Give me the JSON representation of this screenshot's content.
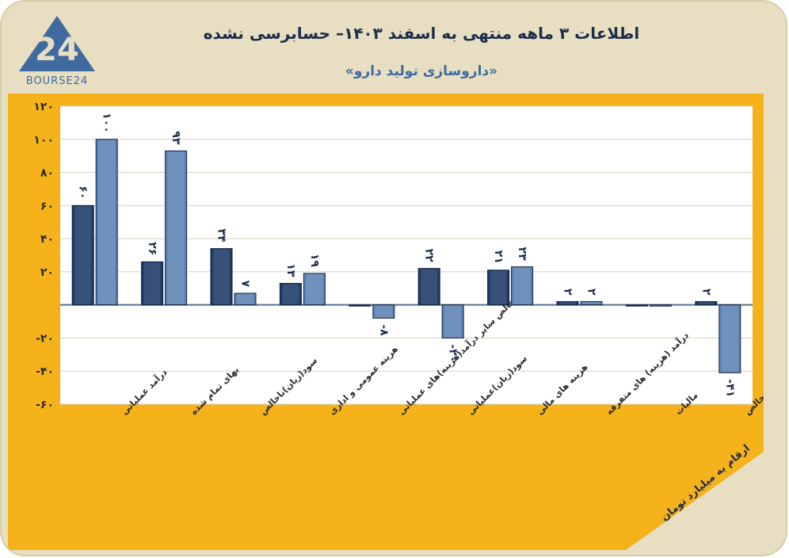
{
  "header": {
    "title": "اطلاعات ۳ ماهه منتهی به اسفند ۱۴۰۳– حسابرسی نشده",
    "subtitle": "«داروسازی تولید دارو»",
    "logo_text": "BOURSE24",
    "logo_mark": "24"
  },
  "unit_note": "ارقام به میلیارد تومان",
  "colors": {
    "background": "#e8dfc3",
    "panel": "#f6b21a",
    "series_dark": "#1d3a66",
    "series_light": "#5e82b4",
    "gridline": "#d7d2c4",
    "axis_text": "#2a2a2a"
  },
  "chart_data": {
    "type": "bar",
    "categories": [
      "درآمد عملیاتی",
      "بهای تمام شده",
      "سود(زیان)ناخالص",
      "هزینه عمومی و اداری",
      "خالص سایر درآمد(هزینه)های عملیاتی",
      "سود(زیان)عملیاتی",
      "هزینه های مالی",
      "درآمد (هزینه) های متفرقه",
      "مالیات",
      "سود(زیان) خالص"
    ],
    "series": [
      {
        "values": [
          60,
          26,
          34,
          13,
          0,
          22,
          21,
          2,
          0,
          2
        ],
        "labels": [
          "۶۰",
          "۲۶",
          "۳۴",
          "۱۳",
          "",
          "۲۲",
          "۲۱",
          "۲",
          "",
          "۲"
        ]
      },
      {
        "values": [
          100,
          93,
          7,
          19,
          -8,
          -20,
          23,
          2,
          0,
          -41
        ],
        "labels": [
          "۱۰۰",
          "۹۳",
          "۷",
          "۱۹",
          "-۸",
          "-۲۰",
          "۲۳",
          "۲",
          "",
          "-۴۱"
        ]
      }
    ],
    "ylim": [
      -60,
      120
    ],
    "yticks": [
      -60,
      -40,
      -20,
      20,
      40,
      60,
      80,
      100,
      120
    ],
    "ytick_labels": [
      "-۶۰",
      "-۴۰",
      "-۲۰",
      "۲۰",
      "۴۰",
      "۶۰",
      "۸۰",
      "۱۰۰",
      "۱۲۰"
    ],
    "grid": true
  }
}
